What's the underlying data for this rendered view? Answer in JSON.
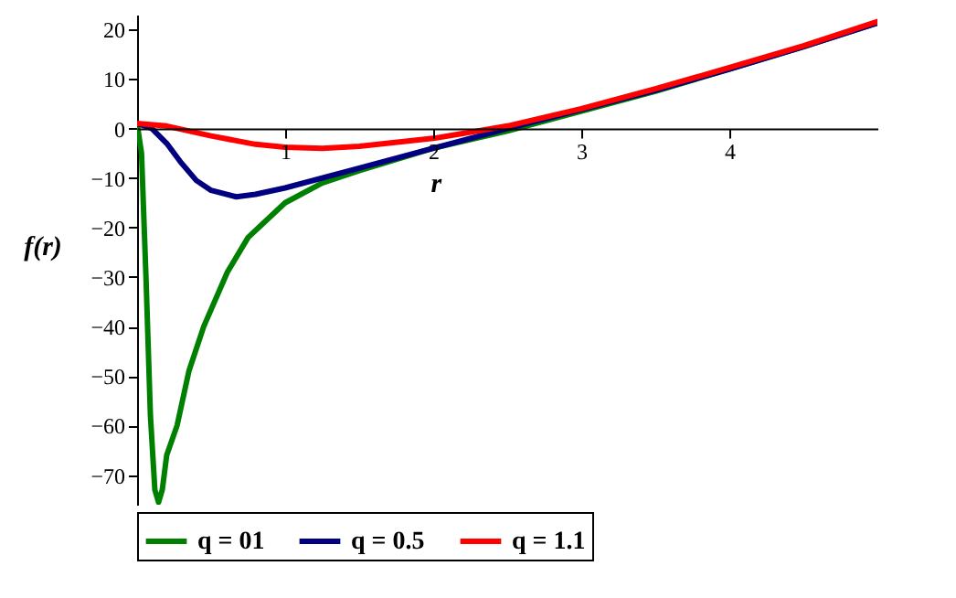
{
  "chart_data": {
    "type": "line",
    "xlabel": "r",
    "ylabel": "f(r)",
    "xlim": [
      0,
      5
    ],
    "ylim": [
      -76,
      23
    ],
    "xticks": [
      1,
      2,
      3,
      4
    ],
    "yticks": [
      -70,
      -60,
      -50,
      -40,
      -30,
      -20,
      -10,
      0,
      10,
      20
    ],
    "grid": false,
    "legend": "bottom",
    "line_style": "solid",
    "marker": "none",
    "series": [
      {
        "name": "q = 01",
        "color": "#008000",
        "x": [
          0,
          0.03,
          0.06,
          0.09,
          0.12,
          0.145,
          0.17,
          0.2,
          0.27,
          0.35,
          0.45,
          0.61,
          0.75,
          1,
          1.25,
          1.5,
          2,
          2.5,
          3,
          3.5,
          4,
          4.5,
          5
        ],
        "values": [
          1,
          -5,
          -30,
          -58,
          -73,
          -75.5,
          -73,
          -66,
          -60,
          -49,
          -40,
          -29,
          -22,
          -15,
          -11,
          -8.5,
          -4,
          -0.5,
          3.5,
          7.5,
          12,
          16.5,
          21.3
        ]
      },
      {
        "name": "q = 0.5",
        "color": "#000080",
        "x": [
          0,
          0.1,
          0.2,
          0.3,
          0.4,
          0.5,
          0.67,
          0.8,
          1,
          1.5,
          2,
          2.5,
          3,
          3.5,
          4,
          4.5,
          5
        ],
        "values": [
          1,
          0,
          -3,
          -7,
          -10.5,
          -12.5,
          -13.8,
          -13.3,
          -12,
          -8,
          -4,
          0,
          3.8,
          7.7,
          12,
          16.5,
          21.3
        ]
      },
      {
        "name": "q = 1.1",
        "color": "#ff0000",
        "x": [
          0,
          0.2,
          0.5,
          0.8,
          1,
          1.25,
          1.5,
          2,
          2.5,
          3,
          3.5,
          4,
          4.5,
          5
        ],
        "values": [
          1,
          0.5,
          -1.5,
          -3.2,
          -3.8,
          -4,
          -3.6,
          -2,
          0.5,
          4,
          8,
          12.3,
          16.7,
          21.6
        ]
      }
    ]
  }
}
